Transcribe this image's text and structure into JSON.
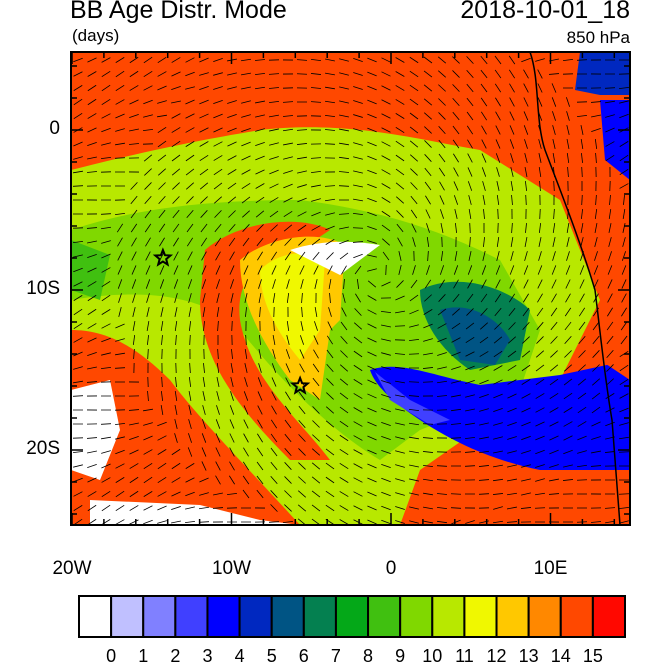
{
  "header": {
    "title": "BB Age Distr. Mode",
    "units": "(days)",
    "datetime": "2018-10-01_18",
    "level": "850 hPa"
  },
  "axes": {
    "x_labels": [
      {
        "lon": -20,
        "text": "20W"
      },
      {
        "lon": -10,
        "text": "10W"
      },
      {
        "lon": 0,
        "text": "0"
      },
      {
        "lon": 10,
        "text": "10E"
      }
    ],
    "y_labels": [
      {
        "lat": 0,
        "text": "0"
      },
      {
        "lat": -10,
        "text": "10S"
      },
      {
        "lat": -20,
        "text": "20S"
      }
    ],
    "lon_range": [
      -20,
      15
    ],
    "lat_range": [
      -24.6,
      5
    ]
  },
  "markers": [
    {
      "name": "star",
      "lon": -14.3,
      "lat": -8
    },
    {
      "name": "star",
      "lon": -5.7,
      "lat": -16
    }
  ],
  "colorbar": {
    "labels": [
      "0",
      "1",
      "2",
      "3",
      "4",
      "5",
      "6",
      "7",
      "8",
      "9",
      "10",
      "11",
      "12",
      "13",
      "14",
      "15"
    ],
    "colors": [
      "#ffffff",
      "#c0c0ff",
      "#8080ff",
      "#4040ff",
      "#0000ff",
      "#0028c0",
      "#005484",
      "#048050",
      "#04a818",
      "#40c010",
      "#80d800",
      "#b8e800",
      "#f0f800",
      "#ffc800",
      "#ff8800",
      "#ff4800",
      "#ff0800"
    ]
  }
}
